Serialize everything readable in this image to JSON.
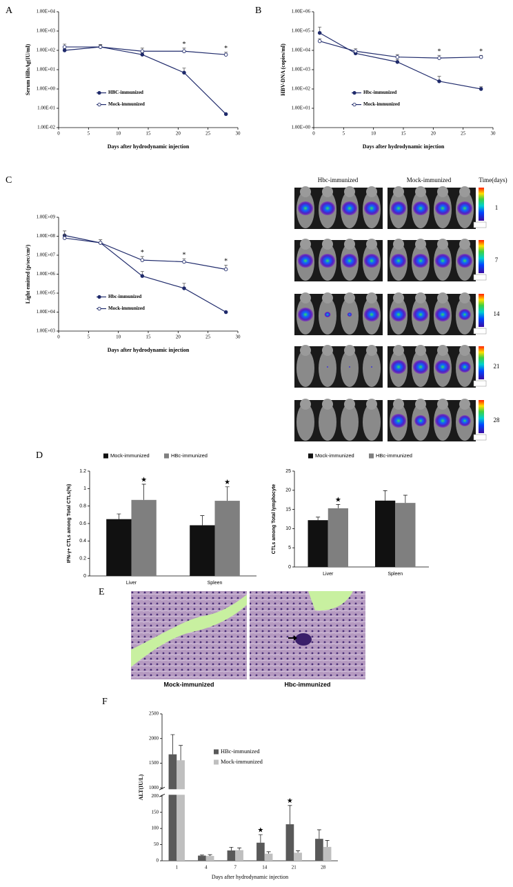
{
  "panels": [
    "A",
    "B",
    "C",
    "D",
    "E",
    "F"
  ],
  "chart_data": [
    {
      "type": "line",
      "log_y": true,
      "xlabel": "Days after hydrodynamic injection",
      "ylabel": "Serum HBsAg(IU/ml)",
      "x": [
        1,
        7,
        14,
        21,
        28
      ],
      "xlim": [
        0,
        30
      ],
      "xticks": [
        0,
        5,
        10,
        15,
        20,
        25,
        30
      ],
      "ylim": [
        0.01,
        10000
      ],
      "yticks": [
        {
          "value": 0.01,
          "label": "1.00E-02"
        },
        {
          "value": 0.1,
          "label": "1.00E-01"
        },
        {
          "value": 1,
          "label": "1.00E+00"
        },
        {
          "value": 10,
          "label": "1.00E+01"
        },
        {
          "value": 100,
          "label": "1.00E+02"
        },
        {
          "value": 1000,
          "label": "1.00E+03"
        },
        {
          "value": 10000,
          "label": "1.00E+04"
        }
      ],
      "legend": "lower left",
      "series": [
        {
          "name": "HBC-immunized",
          "color": "#1f2a6b",
          "marker": "filled",
          "values": [
            100,
            150,
            60,
            7,
            0.05
          ],
          "errors": [
            20,
            40,
            15,
            5,
            0
          ]
        },
        {
          "name": "Mock-immunized",
          "color": "#1f2a6b",
          "marker": "open",
          "values": [
            150,
            150,
            90,
            90,
            60
          ],
          "errors": [
            60,
            50,
            40,
            40,
            20
          ]
        }
      ],
      "annotations": [
        {
          "x": 21,
          "text": "*"
        },
        {
          "x": 28,
          "text": "*"
        }
      ]
    },
    {
      "type": "line",
      "log_y": true,
      "xlabel": "Days after hydrodynamic injection",
      "ylabel": "HBV-DNA (copies/ml)",
      "x": [
        1,
        7,
        14,
        21,
        28
      ],
      "xlim": [
        0,
        30
      ],
      "xticks": [
        0,
        5,
        10,
        15,
        20,
        25,
        30
      ],
      "ylim": [
        1,
        1000000
      ],
      "yticks": [
        {
          "value": 1,
          "label": "1.00E+00"
        },
        {
          "value": 10,
          "label": "1.00E+01"
        },
        {
          "value": 100,
          "label": "1.00E+02"
        },
        {
          "value": 1000,
          "label": "1.00E+03"
        },
        {
          "value": 10000,
          "label": "1.00E+04"
        },
        {
          "value": 100000,
          "label": "1.00E+05"
        },
        {
          "value": 1000000,
          "label": "1.00E+06"
        }
      ],
      "legend": "lower left",
      "series": [
        {
          "name": "Hbc-immunized",
          "color": "#1f2a6b",
          "marker": "filled",
          "values": [
            80000,
            7000,
            2500,
            250,
            100
          ],
          "errors": [
            80000,
            2000,
            800,
            200,
            30
          ]
        },
        {
          "name": "Mock-immunized",
          "color": "#1f2a6b",
          "marker": "open",
          "values": [
            30000,
            9000,
            4500,
            4000,
            4500
          ],
          "errors": [
            10000,
            3000,
            1500,
            1500,
            1000
          ]
        }
      ],
      "annotations": [
        {
          "x": 21,
          "text": "*"
        },
        {
          "x": 28,
          "text": "*"
        }
      ]
    },
    {
      "type": "line",
      "log_y": true,
      "xlabel": "Days after hydrodynamic injection",
      "ylabel": "Light emitted (p/sec/cm²)",
      "x": [
        1,
        7,
        14,
        21,
        28
      ],
      "xlim": [
        0,
        30
      ],
      "xticks": [
        0,
        5,
        10,
        15,
        20,
        25,
        30
      ],
      "ylim": [
        1000,
        1000000000
      ],
      "yticks": [
        {
          "value": 1000,
          "label": "1.00E+03"
        },
        {
          "value": 10000,
          "label": "1.00E+04"
        },
        {
          "value": 100000,
          "label": "1.00E+05"
        },
        {
          "value": 1000000,
          "label": "1.00E+06"
        },
        {
          "value": 10000000,
          "label": "1.00E+07"
        },
        {
          "value": 100000000,
          "label": "1.00E+08"
        },
        {
          "value": 1000000000,
          "label": "1.00E+09"
        }
      ],
      "legend": "lower left",
      "series": [
        {
          "name": "Hbc-immunized",
          "color": "#1f2a6b",
          "marker": "filled",
          "values": [
            110000000,
            45000000,
            800000,
            180000,
            10000
          ],
          "errors": [
            80000000,
            20000000,
            600000,
            150000,
            0
          ]
        },
        {
          "name": "Mock-immunized",
          "color": "#1f2a6b",
          "marker": "open",
          "values": [
            80000000,
            45000000,
            5500000,
            4500000,
            1800000
          ],
          "errors": [
            40000000,
            20000000,
            3000000,
            2000000,
            1200000
          ]
        }
      ],
      "annotations": [
        {
          "x": 14,
          "text": "*"
        },
        {
          "x": 21,
          "text": "*"
        },
        {
          "x": 28,
          "text": "*"
        }
      ]
    },
    {
      "type": "bar",
      "ylabel": "IFN-γ+ CTLs among Total CTLs(%)",
      "categories": [
        "Liver",
        "Spleen"
      ],
      "ylim": [
        0,
        1.2
      ],
      "yticks": [
        0,
        0.2,
        0.4,
        0.6,
        0.8,
        1,
        1.2
      ],
      "legend": "upper center",
      "series": [
        {
          "name": "Mock-immunized",
          "color": "#111111",
          "values": [
            0.65,
            0.58
          ],
          "errors": [
            0.06,
            0.11
          ]
        },
        {
          "name": "HBc-immunized",
          "color": "#7f7f7f",
          "values": [
            0.87,
            0.86
          ],
          "errors": [
            0.18,
            0.16
          ]
        }
      ],
      "annotations": [
        {
          "category": "Liver",
          "text": "★"
        },
        {
          "category": "Spleen",
          "text": "★"
        }
      ]
    },
    {
      "type": "bar",
      "ylabel": "CTLs among Total lymphocyte",
      "categories": [
        "Liver",
        "Spleen"
      ],
      "ylim": [
        0,
        25
      ],
      "yticks": [
        0,
        5,
        10,
        15,
        20,
        25
      ],
      "legend": "upper center",
      "series": [
        {
          "name": "Mock-immunized",
          "color": "#111111",
          "values": [
            12.2,
            17.3
          ],
          "errors": [
            0.8,
            2.6
          ]
        },
        {
          "name": "HBc-immunized",
          "color": "#7f7f7f",
          "values": [
            15.3,
            16.7
          ],
          "errors": [
            1.0,
            2.0
          ]
        }
      ],
      "annotations": [
        {
          "category": "Liver",
          "text": "★"
        }
      ]
    },
    {
      "type": "bar",
      "xlabel": "Days after hydrodynamic injection",
      "ylabel": "ALT(IU/L)",
      "categories": [
        "1",
        "4",
        "7",
        "14",
        "21",
        "28"
      ],
      "ylim": [
        0,
        2500
      ],
      "axis_break": [
        200,
        1000
      ],
      "yticks": [
        0,
        50,
        100,
        150,
        200,
        1000,
        1500,
        2000,
        2500
      ],
      "legend": "center",
      "series": [
        {
          "name": "HBc-immunized",
          "color": "#595959",
          "values": [
            1680,
            16,
            32,
            56,
            113,
            68
          ],
          "errors": [
            400,
            2,
            10,
            25,
            58,
            28
          ]
        },
        {
          "name": "Mock-immunized",
          "color": "#bfbfbf",
          "values": [
            1560,
            15,
            33,
            22,
            25,
            43
          ],
          "errors": [
            300,
            4,
            7,
            6,
            6,
            20
          ]
        }
      ],
      "annotations": [
        {
          "category": "14",
          "text": "★"
        },
        {
          "category": "21",
          "text": "★"
        }
      ]
    }
  ],
  "imaging": {
    "headers": [
      "Hbc-immunized",
      "Mock-immunized",
      "Time(days)"
    ],
    "rows": [
      "1",
      "7",
      "14",
      "21",
      "28"
    ]
  },
  "histology": {
    "labels": [
      "Mock-immunized",
      "Hbc-immunized"
    ]
  }
}
